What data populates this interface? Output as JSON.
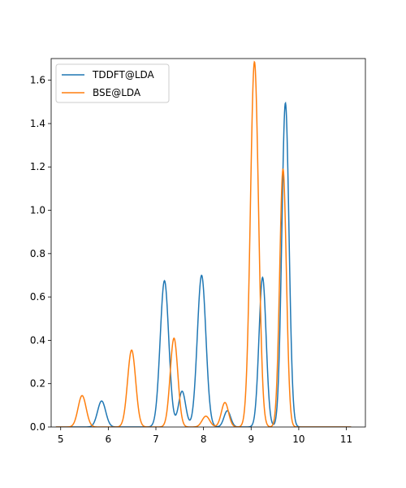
{
  "chart_data": {
    "type": "line",
    "xlim": [
      4.8,
      11.4
    ],
    "ylim": [
      0,
      1.7
    ],
    "xticks": [
      5,
      6,
      7,
      8,
      9,
      10,
      11
    ],
    "yticks": [
      0.0,
      0.2,
      0.4,
      0.6,
      0.8,
      1.0,
      1.2,
      1.4,
      1.6
    ],
    "xtick_labels": [
      "5",
      "6",
      "7",
      "8",
      "9",
      "10",
      "11"
    ],
    "ytick_labels": [
      "0.0",
      "0.2",
      "0.4",
      "0.6",
      "0.8",
      "1.0",
      "1.2",
      "1.4",
      "1.6"
    ],
    "legend_placement": "upper-left",
    "grid": false,
    "title": "",
    "xlabel": "",
    "ylabel": "",
    "series": [
      {
        "name": "TDDFT@LDA",
        "color": "#1f77b4",
        "peaks": [
          {
            "x": 5.86,
            "height": 0.12,
            "sigma": 0.085
          },
          {
            "x": 7.18,
            "height": 0.675,
            "sigma": 0.09
          },
          {
            "x": 7.55,
            "height": 0.165,
            "sigma": 0.075
          },
          {
            "x": 7.96,
            "height": 0.7,
            "sigma": 0.09
          },
          {
            "x": 8.5,
            "height": 0.075,
            "sigma": 0.07
          },
          {
            "x": 9.24,
            "height": 0.69,
            "sigma": 0.075
          },
          {
            "x": 9.72,
            "height": 1.495,
            "sigma": 0.075
          }
        ]
      },
      {
        "name": "BSE@LDA",
        "color": "#ff7f0e",
        "peaks": [
          {
            "x": 5.45,
            "height": 0.145,
            "sigma": 0.085
          },
          {
            "x": 6.49,
            "height": 0.355,
            "sigma": 0.085
          },
          {
            "x": 7.38,
            "height": 0.41,
            "sigma": 0.08
          },
          {
            "x": 8.05,
            "height": 0.05,
            "sigma": 0.08
          },
          {
            "x": 8.45,
            "height": 0.113,
            "sigma": 0.075
          },
          {
            "x": 9.07,
            "height": 1.685,
            "sigma": 0.085
          },
          {
            "x": 9.67,
            "height": 1.19,
            "sigma": 0.07
          }
        ]
      }
    ]
  }
}
